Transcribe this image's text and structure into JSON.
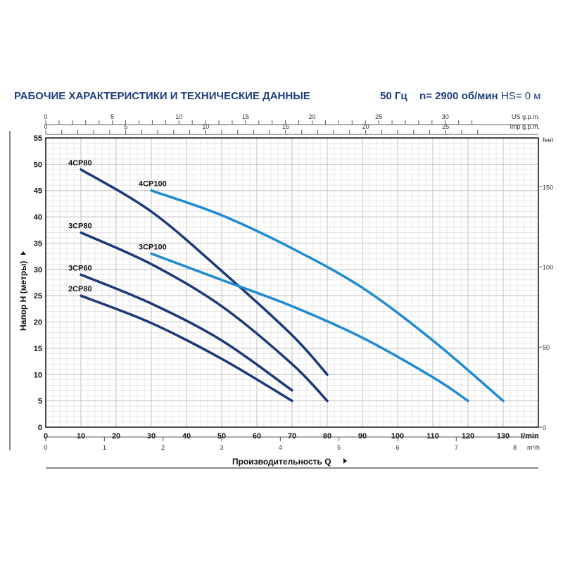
{
  "header": {
    "title": "РАБОЧИЕ ХАРАКТЕРИСТИКИ И ТЕХНИЧЕСКИЕ ДАННЫЕ",
    "freq": "50 Гц",
    "speed": "n= 2900 об/мин",
    "hs": "HS= 0 м"
  },
  "chart_data": {
    "type": "line",
    "xlabel": "Производительность Q",
    "ylabel": "Напор H (метры)",
    "x_unit": "l/min",
    "xlim": [
      0,
      140
    ],
    "xticks": [
      0,
      10,
      20,
      30,
      40,
      50,
      60,
      70,
      80,
      90,
      100,
      110,
      120,
      130
    ],
    "ylim": [
      0,
      55
    ],
    "yticks": [
      0,
      5,
      10,
      15,
      20,
      25,
      30,
      35,
      40,
      45,
      50,
      55
    ],
    "grid": true,
    "secondary_axes": {
      "us_gpm": {
        "label": "US g.p.m.",
        "ticks": [
          0,
          5,
          10,
          15,
          20,
          25,
          30
        ]
      },
      "imp_gpm": {
        "label": "Imp g.p.m.",
        "ticks": [
          0,
          5,
          10,
          15,
          20,
          25
        ]
      },
      "m3h": {
        "label": "m³/h",
        "ticks": [
          0,
          1,
          2,
          3,
          4,
          5,
          6,
          7,
          8
        ]
      },
      "feet": {
        "label": "feet",
        "ticks": [
          0,
          50,
          100,
          150
        ]
      }
    },
    "colors": {
      "CP80": "#1b3a78",
      "CP100": "#1f8bd1"
    },
    "series": [
      {
        "name": "4CP80",
        "color": "#1b3a78",
        "x": [
          10,
          30,
          50,
          70,
          80
        ],
        "y": [
          49,
          41,
          29.7,
          17.5,
          10
        ]
      },
      {
        "name": "4CP100",
        "color": "#1f8bd1",
        "x": [
          30,
          50,
          70,
          90,
          110,
          130
        ],
        "y": [
          45,
          40.3,
          34,
          26.5,
          16.5,
          5
        ]
      },
      {
        "name": "3CP80",
        "color": "#1b3a78",
        "x": [
          10,
          30,
          50,
          70,
          80
        ],
        "y": [
          37,
          31,
          23,
          12,
          5
        ]
      },
      {
        "name": "3CP100",
        "color": "#1f8bd1",
        "x": [
          30,
          50,
          70,
          90,
          110,
          120
        ],
        "y": [
          33,
          28,
          23,
          17,
          9.5,
          5
        ]
      },
      {
        "name": "3CP60",
        "color": "#1b3a78",
        "x": [
          10,
          30,
          50,
          70
        ],
        "y": [
          29,
          23.5,
          16.5,
          7
        ]
      },
      {
        "name": "2CP80",
        "color": "#1b3a78",
        "x": [
          10,
          30,
          50,
          70
        ],
        "y": [
          25,
          19.8,
          13,
          5
        ]
      }
    ]
  }
}
